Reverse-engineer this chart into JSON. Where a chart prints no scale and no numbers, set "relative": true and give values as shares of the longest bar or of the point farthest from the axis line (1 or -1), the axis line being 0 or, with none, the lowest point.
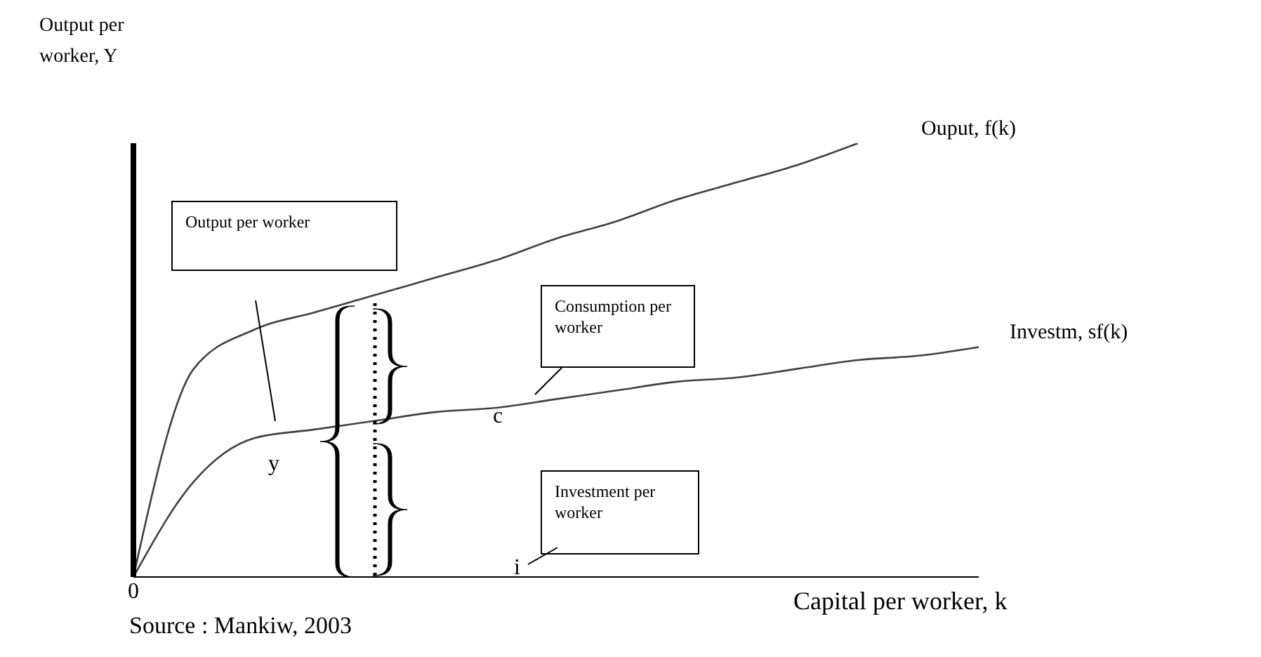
{
  "chart_data": {
    "type": "line",
    "relative": true,
    "xlabel": "Capital per worker, k",
    "ylabel": "Output per worker, Y",
    "categories": [
      null,
      null,
      null,
      null,
      null,
      null,
      null,
      null,
      null,
      null,
      null,
      null,
      null,
      null,
      null
    ],
    "series": [
      {
        "name": "Ouput, f(k)",
        "color": "#404040",
        "values": [
          0,
          0.48,
          0.57,
          0.61,
          0.65,
          0.69,
          0.73,
          0.78,
          0.82,
          0.87,
          0.91,
          0.95,
          1,
          null,
          null
        ]
      },
      {
        "name": "Investm, sf(k)",
        "color": "#404040",
        "values": [
          0,
          0.22,
          0.32,
          0.34,
          0.36,
          0.38,
          0.39,
          0.41,
          0.43,
          0.45,
          0.46,
          0.48,
          0.5,
          0.51,
          0.53
        ]
      }
    ],
    "annotations": [
      "Output per worker",
      "Consumption per worker",
      "Investment per worker",
      "y",
      "c",
      "i",
      "Source : Mankiw, 2003",
      "0"
    ],
    "grid": false,
    "legend": false,
    "marker": "none",
    "line_style": "solid"
  }
}
